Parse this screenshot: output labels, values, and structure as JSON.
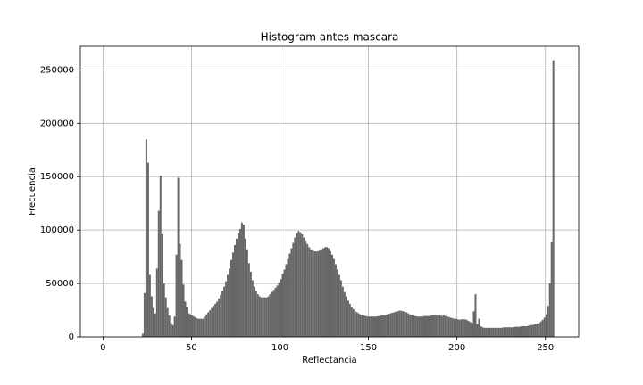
{
  "chart_data": {
    "type": "histogram",
    "title": "Histogram antes mascara",
    "x_label": "Reflectancia",
    "y_label": "Frecuencia",
    "color": "#666666",
    "grid": true,
    "xlim": [
      -12.8,
      268.8
    ],
    "ylim": [
      0,
      272000
    ],
    "xticks": [
      0,
      50,
      100,
      150,
      200,
      250
    ],
    "yticks": [
      0,
      50000,
      100000,
      150000,
      200000,
      250000
    ],
    "bins": [
      0,
      1,
      2,
      3,
      4,
      5,
      6,
      7,
      8,
      9,
      10,
      11,
      12,
      13,
      14,
      15,
      16,
      17,
      18,
      19,
      20,
      21,
      22,
      23,
      24,
      25,
      26,
      27,
      28,
      29,
      30,
      31,
      32,
      33,
      34,
      35,
      36,
      37,
      38,
      39,
      40,
      41,
      42,
      43,
      44,
      45,
      46,
      47,
      48,
      49,
      50,
      51,
      52,
      53,
      54,
      55,
      56,
      57,
      58,
      59,
      60,
      61,
      62,
      63,
      64,
      65,
      66,
      67,
      68,
      69,
      70,
      71,
      72,
      73,
      74,
      75,
      76,
      77,
      78,
      79,
      80,
      81,
      82,
      83,
      84,
      85,
      86,
      87,
      88,
      89,
      90,
      91,
      92,
      93,
      94,
      95,
      96,
      97,
      98,
      99,
      100,
      101,
      102,
      103,
      104,
      105,
      106,
      107,
      108,
      109,
      110,
      111,
      112,
      113,
      114,
      115,
      116,
      117,
      118,
      119,
      120,
      121,
      122,
      123,
      124,
      125,
      126,
      127,
      128,
      129,
      130,
      131,
      132,
      133,
      134,
      135,
      136,
      137,
      138,
      139,
      140,
      141,
      142,
      143,
      144,
      145,
      146,
      147,
      148,
      149,
      150,
      151,
      152,
      153,
      154,
      155,
      156,
      157,
      158,
      159,
      160,
      161,
      162,
      163,
      164,
      165,
      166,
      167,
      168,
      169,
      170,
      171,
      172,
      173,
      174,
      175,
      176,
      177,
      178,
      179,
      180,
      181,
      182,
      183,
      184,
      185,
      186,
      187,
      188,
      189,
      190,
      191,
      192,
      193,
      194,
      195,
      196,
      197,
      198,
      199,
      200,
      201,
      202,
      203,
      204,
      205,
      206,
      207,
      208,
      209,
      210,
      211,
      212,
      213,
      214,
      215,
      216,
      217,
      218,
      219,
      220,
      221,
      222,
      223,
      224,
      225,
      226,
      227,
      228,
      229,
      230,
      231,
      232,
      233,
      234,
      235,
      236,
      237,
      238,
      239,
      240,
      241,
      242,
      243,
      244,
      245,
      246,
      247,
      248,
      249,
      250,
      251,
      252,
      253,
      254,
      255,
      256
    ],
    "counts": [
      0,
      0,
      0,
      0,
      0,
      0,
      0,
      0,
      0,
      0,
      0,
      0,
      0,
      0,
      0,
      0,
      0,
      0,
      0,
      0,
      0,
      0,
      3000,
      41000,
      185000,
      163000,
      58000,
      38000,
      27000,
      22000,
      64000,
      118000,
      151000,
      96000,
      50000,
      37000,
      27000,
      20000,
      13000,
      11000,
      19000,
      77000,
      149000,
      87000,
      72000,
      49000,
      33000,
      28000,
      22000,
      21000,
      20000,
      19000,
      18000,
      17000,
      17000,
      17000,
      17000,
      19000,
      21000,
      23000,
      25000,
      27000,
      29000,
      31000,
      33000,
      36000,
      39000,
      43000,
      47000,
      52000,
      58000,
      64000,
      72000,
      79000,
      86000,
      92000,
      97000,
      101000,
      107000,
      105000,
      92000,
      82000,
      69000,
      61000,
      53000,
      47000,
      43000,
      40000,
      38000,
      37000,
      37000,
      37000,
      37000,
      38000,
      40000,
      42000,
      44000,
      46000,
      48000,
      51000,
      54000,
      59000,
      63000,
      68000,
      73000,
      78000,
      83000,
      88000,
      93000,
      97000,
      99000,
      98000,
      96000,
      93000,
      90000,
      87000,
      84000,
      82000,
      81000,
      80000,
      80000,
      80000,
      81000,
      82000,
      83000,
      84000,
      84000,
      83000,
      80000,
      77000,
      73000,
      68000,
      63000,
      58000,
      53000,
      47000,
      42000,
      38000,
      34000,
      31000,
      28000,
      26000,
      24000,
      23000,
      22000,
      21000,
      20500,
      20000,
      19500,
      19000,
      19000,
      19000,
      19000,
      19000,
      19000,
      19500,
      19500,
      20000,
      20000,
      20500,
      21000,
      21500,
      22000,
      22500,
      23000,
      23500,
      24000,
      24500,
      24500,
      24000,
      23500,
      23000,
      22000,
      21000,
      20500,
      20000,
      19500,
      19000,
      19000,
      19000,
      19000,
      19500,
      19500,
      19500,
      19500,
      20000,
      20000,
      20000,
      20000,
      20000,
      20000,
      19500,
      20000,
      19500,
      19000,
      18500,
      18000,
      17500,
      17000,
      17000,
      16500,
      16000,
      16500,
      16500,
      16500,
      16000,
      15000,
      14000,
      13000,
      24000,
      40000,
      12000,
      17000,
      10000,
      9000,
      8500,
      8500,
      8500,
      8500,
      8500,
      8500,
      8500,
      8500,
      8500,
      8500,
      8500,
      9000,
      9000,
      9000,
      9000,
      9000,
      9000,
      9500,
      9500,
      9500,
      9500,
      10000,
      10000,
      10000,
      10000,
      10500,
      11000,
      11000,
      11500,
      12000,
      12500,
      13000,
      14500,
      16000,
      18000,
      21000,
      29000,
      50000,
      89000,
      259000,
      0
    ]
  }
}
